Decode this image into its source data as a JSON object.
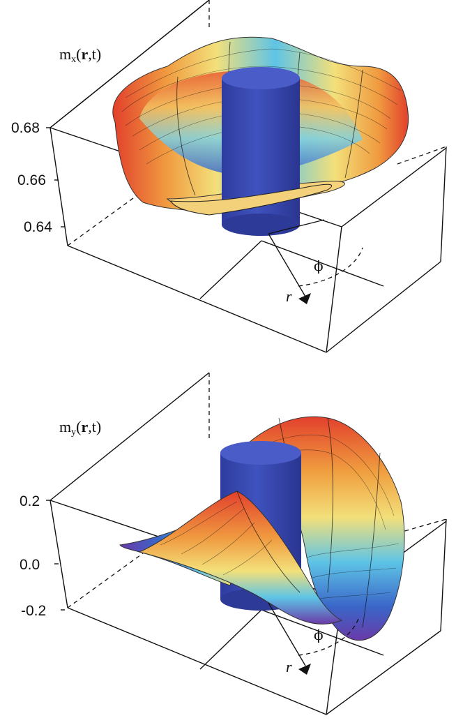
{
  "top": {
    "z_label": {
      "prefix": "m",
      "sub": "x",
      "paren_open": "(",
      "bold": "r",
      "rest": ",t)"
    },
    "ticks": [
      "0.68",
      "0.66",
      "0.64"
    ],
    "phi": "ϕ",
    "r": "r"
  },
  "bottom": {
    "z_label": {
      "prefix": "m",
      "sub": "y",
      "paren_open": "(",
      "bold": "r",
      "rest": ",t)"
    },
    "ticks": [
      "0.2",
      "0.0",
      "-0.2"
    ],
    "phi": "ϕ",
    "r": "r"
  },
  "colors": {
    "cylinder": "#3a4bb0",
    "cylinder_dark": "#2a3590",
    "surface_red": "#e2402c",
    "surface_orange": "#f0a040",
    "surface_yellow": "#f3e07a",
    "surface_cyan": "#5ec4e6",
    "surface_blue": "#3a66c8",
    "surface_purple": "#6a3aa8"
  }
}
